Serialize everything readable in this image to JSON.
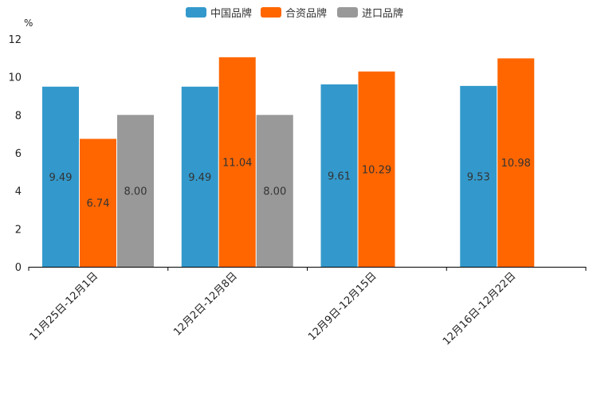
{
  "chart_data": {
    "type": "bar",
    "title": "",
    "xlabel": "",
    "ylabel": "%",
    "ylim": [
      0,
      12
    ],
    "yticks": [
      0,
      2,
      4,
      6,
      8,
      10,
      12
    ],
    "grid": false,
    "legend_position": "top-center",
    "categories": [
      "11月25日-12月1日",
      "12月2日-12月8日",
      "12月9日-12月15日",
      "12月16日-12月22日"
    ],
    "series": [
      {
        "name": "中国品牌",
        "color": "#3399cc",
        "values": [
          9.49,
          9.49,
          9.61,
          9.53
        ],
        "labels": [
          "9.49",
          "9.49",
          "9.61",
          "9.53"
        ]
      },
      {
        "name": "合资品牌",
        "color": "#ff6600",
        "values": [
          6.74,
          11.04,
          10.29,
          10.98
        ],
        "labels": [
          "6.74",
          "11.04",
          "10.29",
          "10.98"
        ]
      },
      {
        "name": "进口品牌",
        "color": "#999999",
        "values": [
          8.0,
          8.0,
          null,
          null
        ],
        "labels": [
          "8.00",
          "8.00",
          null,
          null
        ]
      }
    ]
  }
}
